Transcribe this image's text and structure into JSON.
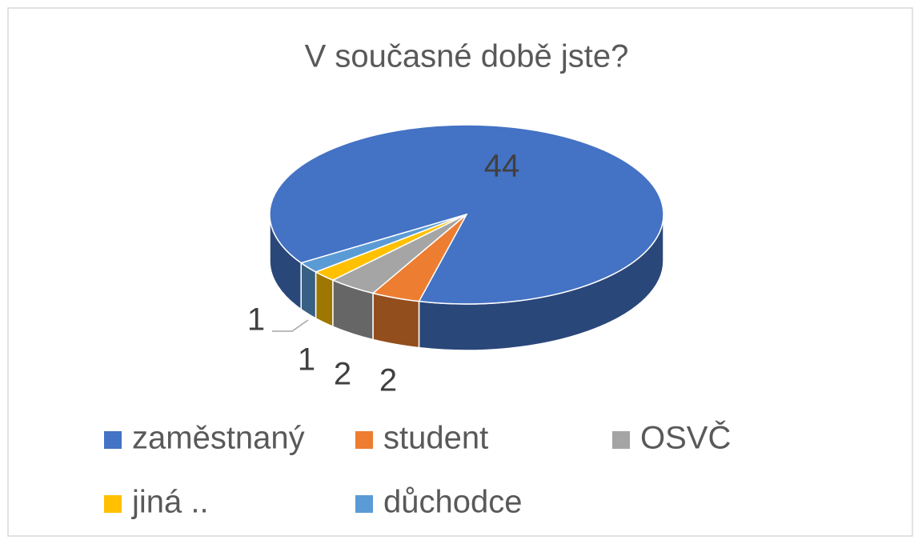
{
  "chart_data": {
    "type": "pie",
    "three_d": true,
    "title": "V současné době jste?",
    "categories": [
      "zaměstnaný",
      "student",
      "OSVČ",
      "jiná ..",
      "důchodce"
    ],
    "values": [
      44,
      2,
      2,
      1,
      1
    ],
    "colors": [
      "#4472c4",
      "#ed7d31",
      "#a5a5a5",
      "#ffc000",
      "#5b9bd5"
    ],
    "legend": "bottom"
  }
}
